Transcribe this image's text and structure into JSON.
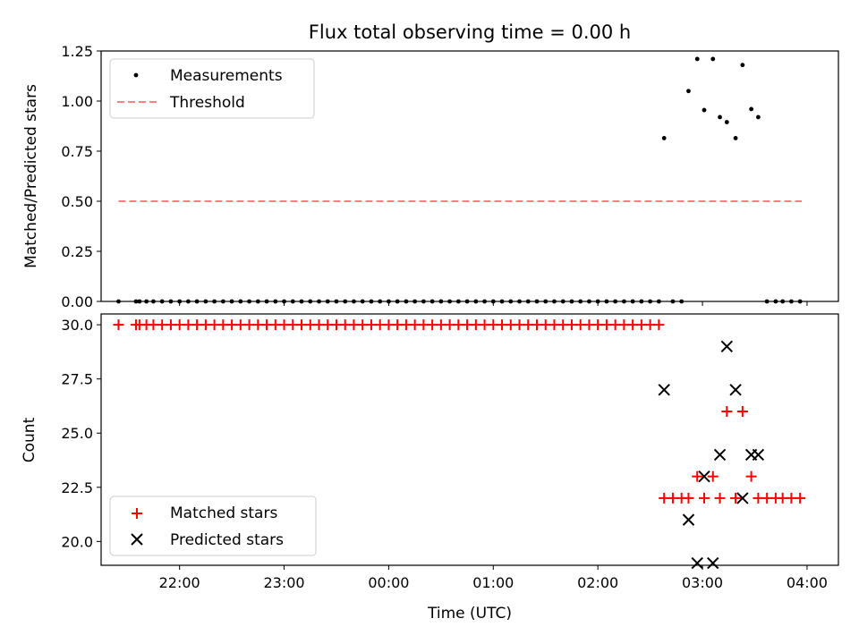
{
  "title": "Flux total observing time = 0.00 h",
  "chart_data": [
    {
      "type": "scatter",
      "ylabel": "Matched/Predicted stars",
      "xlabel": "",
      "ylim": [
        0,
        1.25
      ],
      "yticks": [
        "0.00",
        "0.25",
        "0.50",
        "0.75",
        "1.00",
        "1.25"
      ],
      "legend": "upper-left",
      "series": [
        {
          "name": "Measurements",
          "marker": "dot",
          "color": "#000000",
          "points": [
            [
              "21:25",
              0
            ],
            [
              "21:35",
              0
            ],
            [
              "21:37",
              0
            ],
            [
              "21:41",
              0
            ],
            [
              "21:45",
              0
            ],
            [
              "21:50",
              0
            ],
            [
              "21:55",
              0
            ],
            [
              "22:00",
              0
            ],
            [
              "22:05",
              0
            ],
            [
              "22:10",
              0
            ],
            [
              "22:15",
              0
            ],
            [
              "22:20",
              0
            ],
            [
              "22:25",
              0
            ],
            [
              "22:30",
              0
            ],
            [
              "22:35",
              0
            ],
            [
              "22:40",
              0
            ],
            [
              "22:45",
              0
            ],
            [
              "22:50",
              0
            ],
            [
              "22:55",
              0
            ],
            [
              "23:00",
              0
            ],
            [
              "23:05",
              0
            ],
            [
              "23:10",
              0
            ],
            [
              "23:15",
              0
            ],
            [
              "23:20",
              0
            ],
            [
              "23:25",
              0
            ],
            [
              "23:30",
              0
            ],
            [
              "23:35",
              0
            ],
            [
              "23:40",
              0
            ],
            [
              "23:45",
              0
            ],
            [
              "23:50",
              0
            ],
            [
              "23:55",
              0
            ],
            [
              "00:00",
              0
            ],
            [
              "00:05",
              0
            ],
            [
              "00:10",
              0
            ],
            [
              "00:15",
              0
            ],
            [
              "00:20",
              0
            ],
            [
              "00:25",
              0
            ],
            [
              "00:30",
              0
            ],
            [
              "00:35",
              0
            ],
            [
              "00:40",
              0
            ],
            [
              "00:45",
              0
            ],
            [
              "00:50",
              0
            ],
            [
              "00:55",
              0
            ],
            [
              "01:00",
              0
            ],
            [
              "01:05",
              0
            ],
            [
              "01:10",
              0
            ],
            [
              "01:15",
              0
            ],
            [
              "01:20",
              0
            ],
            [
              "01:25",
              0
            ],
            [
              "01:30",
              0
            ],
            [
              "01:35",
              0
            ],
            [
              "01:40",
              0
            ],
            [
              "01:45",
              0
            ],
            [
              "01:50",
              0
            ],
            [
              "01:55",
              0
            ],
            [
              "02:00",
              0
            ],
            [
              "02:05",
              0
            ],
            [
              "02:10",
              0
            ],
            [
              "02:15",
              0
            ],
            [
              "02:20",
              0
            ],
            [
              "02:25",
              0
            ],
            [
              "02:30",
              0
            ],
            [
              "02:35",
              0
            ],
            [
              "02:38",
              0.815
            ],
            [
              "02:43",
              0
            ],
            [
              "02:48",
              0
            ],
            [
              "02:52",
              1.05
            ],
            [
              "02:57",
              1.21
            ],
            [
              "03:01",
              0.955
            ],
            [
              "03:06",
              1.21
            ],
            [
              "03:10",
              0.92
            ],
            [
              "03:14",
              0.895
            ],
            [
              "03:19",
              0.815
            ],
            [
              "03:23",
              1.18
            ],
            [
              "03:28",
              0.96
            ],
            [
              "03:32",
              0.92
            ],
            [
              "03:37",
              0
            ],
            [
              "03:42",
              0
            ],
            [
              "03:46",
              0
            ],
            [
              "03:51",
              0
            ],
            [
              "03:56",
              0
            ]
          ]
        },
        {
          "name": "Threshold",
          "style": "dashed",
          "color": "#ff8080",
          "points": [
            [
              "21:25",
              0.5
            ],
            [
              "03:57",
              0.5
            ]
          ]
        }
      ]
    },
    {
      "type": "scatter",
      "ylabel": "Count",
      "xlabel": "Time (UTC)",
      "ylim": [
        18.9,
        30.5
      ],
      "yticks": [
        "20.0",
        "22.5",
        "25.0",
        "27.5",
        "30.0"
      ],
      "xticks": [
        "22:00",
        "23:00",
        "00:00",
        "01:00",
        "02:00",
        "03:00",
        "04:00"
      ],
      "legend": "lower-left",
      "series": [
        {
          "name": "Matched stars",
          "marker": "plus",
          "color": "#ff0000",
          "points": [
            [
              "21:25",
              30
            ],
            [
              "21:35",
              30
            ],
            [
              "21:37",
              30
            ],
            [
              "21:41",
              30
            ],
            [
              "21:45",
              30
            ],
            [
              "21:50",
              30
            ],
            [
              "21:55",
              30
            ],
            [
              "22:00",
              30
            ],
            [
              "22:05",
              30
            ],
            [
              "22:10",
              30
            ],
            [
              "22:15",
              30
            ],
            [
              "22:20",
              30
            ],
            [
              "22:25",
              30
            ],
            [
              "22:30",
              30
            ],
            [
              "22:35",
              30
            ],
            [
              "22:40",
              30
            ],
            [
              "22:45",
              30
            ],
            [
              "22:50",
              30
            ],
            [
              "22:55",
              30
            ],
            [
              "23:00",
              30
            ],
            [
              "23:05",
              30
            ],
            [
              "23:10",
              30
            ],
            [
              "23:15",
              30
            ],
            [
              "23:20",
              30
            ],
            [
              "23:25",
              30
            ],
            [
              "23:30",
              30
            ],
            [
              "23:35",
              30
            ],
            [
              "23:40",
              30
            ],
            [
              "23:45",
              30
            ],
            [
              "23:50",
              30
            ],
            [
              "23:55",
              30
            ],
            [
              "00:00",
              30
            ],
            [
              "00:05",
              30
            ],
            [
              "00:10",
              30
            ],
            [
              "00:15",
              30
            ],
            [
              "00:20",
              30
            ],
            [
              "00:25",
              30
            ],
            [
              "00:30",
              30
            ],
            [
              "00:35",
              30
            ],
            [
              "00:40",
              30
            ],
            [
              "00:45",
              30
            ],
            [
              "00:50",
              30
            ],
            [
              "00:55",
              30
            ],
            [
              "01:00",
              30
            ],
            [
              "01:05",
              30
            ],
            [
              "01:10",
              30
            ],
            [
              "01:15",
              30
            ],
            [
              "01:20",
              30
            ],
            [
              "01:25",
              30
            ],
            [
              "01:30",
              30
            ],
            [
              "01:35",
              30
            ],
            [
              "01:40",
              30
            ],
            [
              "01:45",
              30
            ],
            [
              "01:50",
              30
            ],
            [
              "01:55",
              30
            ],
            [
              "02:00",
              30
            ],
            [
              "02:05",
              30
            ],
            [
              "02:10",
              30
            ],
            [
              "02:15",
              30
            ],
            [
              "02:20",
              30
            ],
            [
              "02:25",
              30
            ],
            [
              "02:30",
              30
            ],
            [
              "02:35",
              30
            ],
            [
              "02:38",
              22
            ],
            [
              "02:43",
              22
            ],
            [
              "02:48",
              22
            ],
            [
              "02:52",
              22
            ],
            [
              "02:57",
              23
            ],
            [
              "03:01",
              22
            ],
            [
              "03:06",
              23
            ],
            [
              "03:10",
              22
            ],
            [
              "03:14",
              26
            ],
            [
              "03:19",
              22
            ],
            [
              "03:23",
              26
            ],
            [
              "03:28",
              23
            ],
            [
              "03:32",
              22
            ],
            [
              "03:37",
              22
            ],
            [
              "03:42",
              22
            ],
            [
              "03:46",
              22
            ],
            [
              "03:51",
              22
            ],
            [
              "03:56",
              22
            ]
          ]
        },
        {
          "name": "Predicted stars",
          "marker": "x",
          "color": "#000000",
          "points": [
            [
              "02:38",
              27
            ],
            [
              "02:52",
              21
            ],
            [
              "02:57",
              19
            ],
            [
              "03:01",
              23
            ],
            [
              "03:06",
              19
            ],
            [
              "03:10",
              24
            ],
            [
              "03:14",
              29
            ],
            [
              "03:19",
              27
            ],
            [
              "03:23",
              22
            ],
            [
              "03:28",
              24
            ],
            [
              "03:32",
              24
            ]
          ]
        }
      ]
    }
  ]
}
